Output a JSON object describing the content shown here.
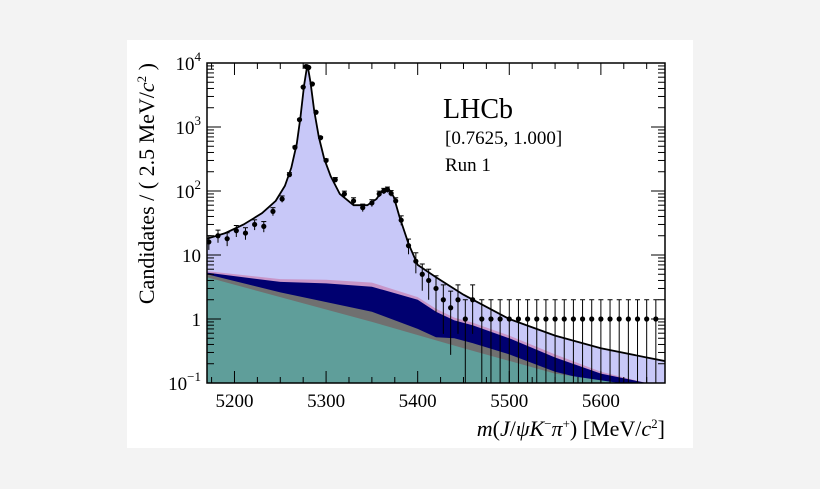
{
  "chart_data": {
    "type": "line",
    "yscale": "log",
    "xlim": [
      5170,
      5670
    ],
    "ylim": [
      0.1,
      10000
    ],
    "xlabel": "m(J/ψK⁻π⁺) [MeV/c²]",
    "ylabel": "Candidates / ( 2.5 MeV/c² )",
    "x_ticks": [
      "5200",
      "5300",
      "5400",
      "5500",
      "5600"
    ],
    "y_ticks": [
      {
        "value": 10000,
        "label": "10",
        "exp": "4"
      },
      {
        "value": 1000,
        "label": "10",
        "exp": "3"
      },
      {
        "value": 100,
        "label": "10",
        "exp": "2"
      },
      {
        "value": 10,
        "label": "10",
        "exp": ""
      },
      {
        "value": 1,
        "label": "1",
        "exp": ""
      },
      {
        "value": 0.1,
        "label": "10",
        "exp": "−1"
      }
    ],
    "annotations": {
      "experiment": "LHCb",
      "range": "[0.7625, 1.000]",
      "run": "Run 1"
    },
    "colors": {
      "signal_fill": "#c8c8f8",
      "component_pink": "#c896c8",
      "component_navy": "#000070",
      "component_gray": "#707070",
      "component_teal": "#5f9e9a",
      "points": "#000000"
    },
    "total_fit": {
      "x": [
        5170,
        5190,
        5210,
        5230,
        5245,
        5255,
        5262,
        5268,
        5272,
        5276,
        5279.6,
        5283,
        5287,
        5292,
        5298,
        5305,
        5315,
        5330,
        5345,
        5355,
        5360,
        5364,
        5366.8,
        5370,
        5374,
        5380,
        5390,
        5400,
        5420,
        5450,
        5500,
        5550,
        5600,
        5650,
        5670
      ],
      "y": [
        18,
        22,
        30,
        45,
        70,
        120,
        230,
        550,
        1400,
        4500,
        9500,
        5000,
        1800,
        700,
        320,
        170,
        90,
        60,
        60,
        75,
        95,
        105,
        110,
        100,
        80,
        40,
        15,
        7,
        4.5,
        2.4,
        1.0,
        0.55,
        0.35,
        0.25,
        0.22
      ]
    },
    "components": [
      {
        "color": "component_teal",
        "x": [
          5170,
          5250,
          5350,
          5450,
          5550,
          5620
        ],
        "y": [
          4.5,
          2.2,
          0.9,
          0.35,
          0.14,
          0.1
        ]
      },
      {
        "color": "component_gray",
        "x": [
          5170,
          5250,
          5350,
          5400,
          5420,
          5440,
          5460,
          5500,
          5550,
          5600
        ],
        "y": [
          5.0,
          2.6,
          1.3,
          0.7,
          0.52,
          0.5,
          0.42,
          0.28,
          0.15,
          0.1
        ]
      },
      {
        "color": "component_navy",
        "x": [
          5170,
          5250,
          5300,
          5350,
          5400,
          5420,
          5440,
          5460,
          5500,
          5550,
          5600,
          5650,
          5670
        ],
        "y": [
          5.3,
          3.8,
          3.6,
          3.2,
          2.0,
          1.3,
          0.95,
          0.8,
          0.5,
          0.25,
          0.14,
          0.1,
          0.1
        ]
      },
      {
        "color": "component_pink",
        "x": [
          5170,
          5250,
          5300,
          5350,
          5400,
          5420,
          5440,
          5460,
          5500,
          5550,
          5600,
          5650,
          5670
        ],
        "y": [
          5.6,
          4.2,
          4.1,
          3.7,
          2.2,
          1.45,
          1.05,
          0.88,
          0.55,
          0.28,
          0.15,
          0.1,
          0.1
        ]
      }
    ],
    "data_points": {
      "x": [
        5172,
        5182,
        5192,
        5202,
        5212,
        5222,
        5232,
        5242,
        5252,
        5260,
        5266,
        5271,
        5275,
        5278,
        5281,
        5285,
        5289,
        5294,
        5300,
        5310,
        5320,
        5330,
        5340,
        5350,
        5358,
        5363,
        5367,
        5371,
        5376,
        5382,
        5390,
        5398,
        5405,
        5412,
        5420,
        5428,
        5436,
        5444,
        5452,
        5460,
        5470,
        5480,
        5490,
        5500,
        5510,
        5520,
        5530,
        5540,
        5550,
        5560,
        5570,
        5580,
        5590,
        5600,
        5610,
        5620,
        5630,
        5640,
        5650,
        5660
      ],
      "y": [
        16,
        20,
        18,
        24,
        22,
        30,
        28,
        48,
        75,
        180,
        480,
        1300,
        4200,
        8800,
        8500,
        4700,
        1700,
        680,
        300,
        150,
        90,
        70,
        55,
        65,
        90,
        100,
        105,
        92,
        70,
        35,
        14,
        8,
        5,
        4,
        3,
        2,
        1.5,
        2,
        1,
        2,
        1,
        1,
        1,
        1,
        1,
        1,
        1,
        1,
        1,
        1,
        1,
        1,
        1,
        1,
        1,
        1,
        1,
        1,
        1,
        1
      ]
    }
  }
}
